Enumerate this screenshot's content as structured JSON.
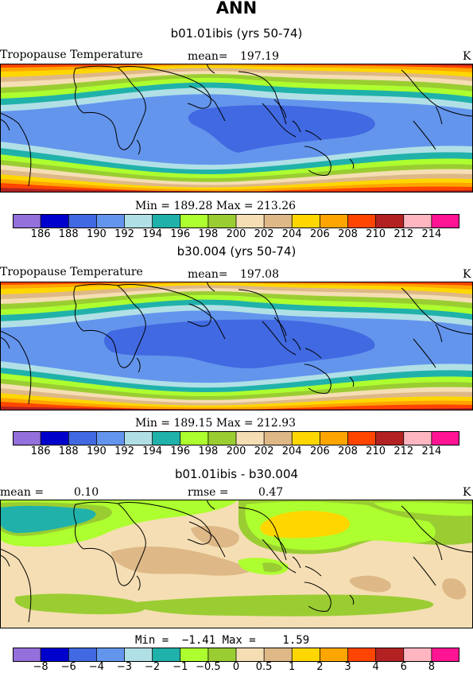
{
  "page_title": "ANN",
  "colorbar_colors": [
    "#9370db",
    "#0000cd",
    "#4169e1",
    "#6495ed",
    "#b0e0e6",
    "#20b2aa",
    "#adff2f",
    "#9acd32",
    "#f5deb3",
    "#deb887",
    "#ffd700",
    "#ffa500",
    "#ff4500",
    "#b22222",
    "#ffb6c1",
    "#ff1493"
  ],
  "land_color": "#000000",
  "panels": [
    {
      "title": "b01.01ibis (yrs 50-74)",
      "variable": "Tropopause Temperature",
      "stat1_label": "mean=",
      "stat1_value": "197.19",
      "units": "K",
      "range_text": "Min = 189.28 Max = 213.26",
      "colorbar_labels": [
        "186",
        "188",
        "190",
        "192",
        "194",
        "196",
        "198",
        "200",
        "202",
        "204",
        "206",
        "208",
        "210",
        "212",
        "214"
      ]
    },
    {
      "title": "b30.004 (yrs 50-74)",
      "variable": "Tropopause Temperature",
      "stat1_label": "mean=",
      "stat1_value": "197.08",
      "units": "K",
      "range_text": "Min = 189.15 Max = 212.93",
      "colorbar_labels": [
        "186",
        "188",
        "190",
        "192",
        "194",
        "196",
        "198",
        "200",
        "202",
        "204",
        "206",
        "208",
        "210",
        "212",
        "214"
      ]
    },
    {
      "title": "b01.01ibis - b30.004",
      "stat1_label": "mean =",
      "stat1_value": "0.10",
      "stat2_label": "rmse =",
      "stat2_value": "0.47",
      "units": "K",
      "range_text": "Min =  −1.41 Max =    1.59",
      "colorbar_labels": [
        "−8",
        "−6",
        "−4",
        "−3",
        "−2",
        "−1",
        "−0.5",
        "0",
        "0.5",
        "1",
        "2",
        "3",
        "4",
        "6",
        "8"
      ]
    }
  ],
  "chart_data": [
    {
      "type": "heatmap",
      "title": "b01.01ibis (yrs 50-74)",
      "variable": "Tropopause Temperature",
      "units": "K",
      "mean": 197.19,
      "min": 189.28,
      "max": 213.26,
      "contour_levels": [
        186,
        188,
        190,
        192,
        194,
        196,
        198,
        200,
        202,
        204,
        206,
        208,
        210,
        212,
        214
      ]
    },
    {
      "type": "heatmap",
      "title": "b30.004 (yrs 50-74)",
      "variable": "Tropopause Temperature",
      "units": "K",
      "mean": 197.08,
      "min": 189.15,
      "max": 212.93,
      "contour_levels": [
        186,
        188,
        190,
        192,
        194,
        196,
        198,
        200,
        202,
        204,
        206,
        208,
        210,
        212,
        214
      ]
    },
    {
      "type": "heatmap",
      "title": "b01.01ibis - b30.004",
      "units": "K",
      "mean": 0.1,
      "rmse": 0.47,
      "min": -1.41,
      "max": 1.59,
      "contour_levels": [
        -8,
        -6,
        -4,
        -3,
        -2,
        -1,
        -0.5,
        0,
        0.5,
        1,
        2,
        3,
        4,
        6,
        8
      ]
    }
  ]
}
